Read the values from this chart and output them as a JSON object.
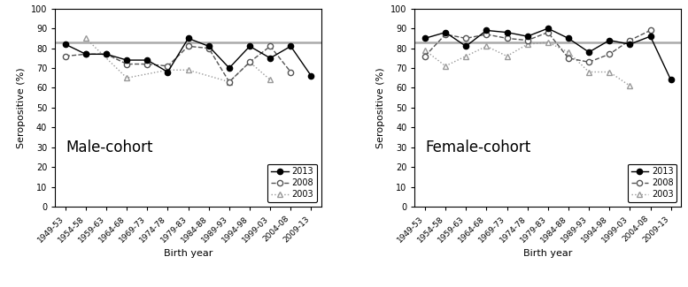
{
  "birth_years": [
    "1949-53",
    "1954-58",
    "1959-63",
    "1964-68",
    "1969-73",
    "1974-78",
    "1979-83",
    "1984-88",
    "1989-93",
    "1994-98",
    "1999-03",
    "2004-08",
    "2009-13"
  ],
  "male": {
    "2013": [
      82,
      77,
      77,
      74,
      74,
      68,
      85,
      81,
      70,
      81,
      75,
      81,
      66
    ],
    "2008": [
      76,
      77,
      77,
      72,
      72,
      71,
      81,
      80,
      63,
      73,
      81,
      68,
      null
    ],
    "2003": [
      null,
      85,
      null,
      65,
      null,
      69,
      69,
      null,
      63,
      73,
      64,
      null,
      null
    ]
  },
  "female": {
    "2013": [
      85,
      88,
      81,
      89,
      88,
      86,
      90,
      85,
      78,
      84,
      82,
      86,
      64
    ],
    "2008": [
      76,
      87,
      85,
      87,
      85,
      84,
      88,
      75,
      73,
      77,
      84,
      89,
      null
    ],
    "2003": [
      79,
      71,
      76,
      81,
      76,
      82,
      83,
      78,
      68,
      68,
      61,
      null,
      null
    ]
  },
  "hline_y": 83,
  "ylim": [
    0,
    100
  ],
  "yticks": [
    0,
    10,
    20,
    30,
    40,
    50,
    60,
    70,
    80,
    90,
    100
  ],
  "ylabel": "Seropositive (%)",
  "xlabel": "Birth year",
  "male_label": "Male-cohort",
  "female_label": "Female-cohort",
  "hline_color": "#aaaaaa",
  "line_color_2013": "#000000",
  "line_color_2008": "#555555",
  "line_color_2003": "#999999"
}
